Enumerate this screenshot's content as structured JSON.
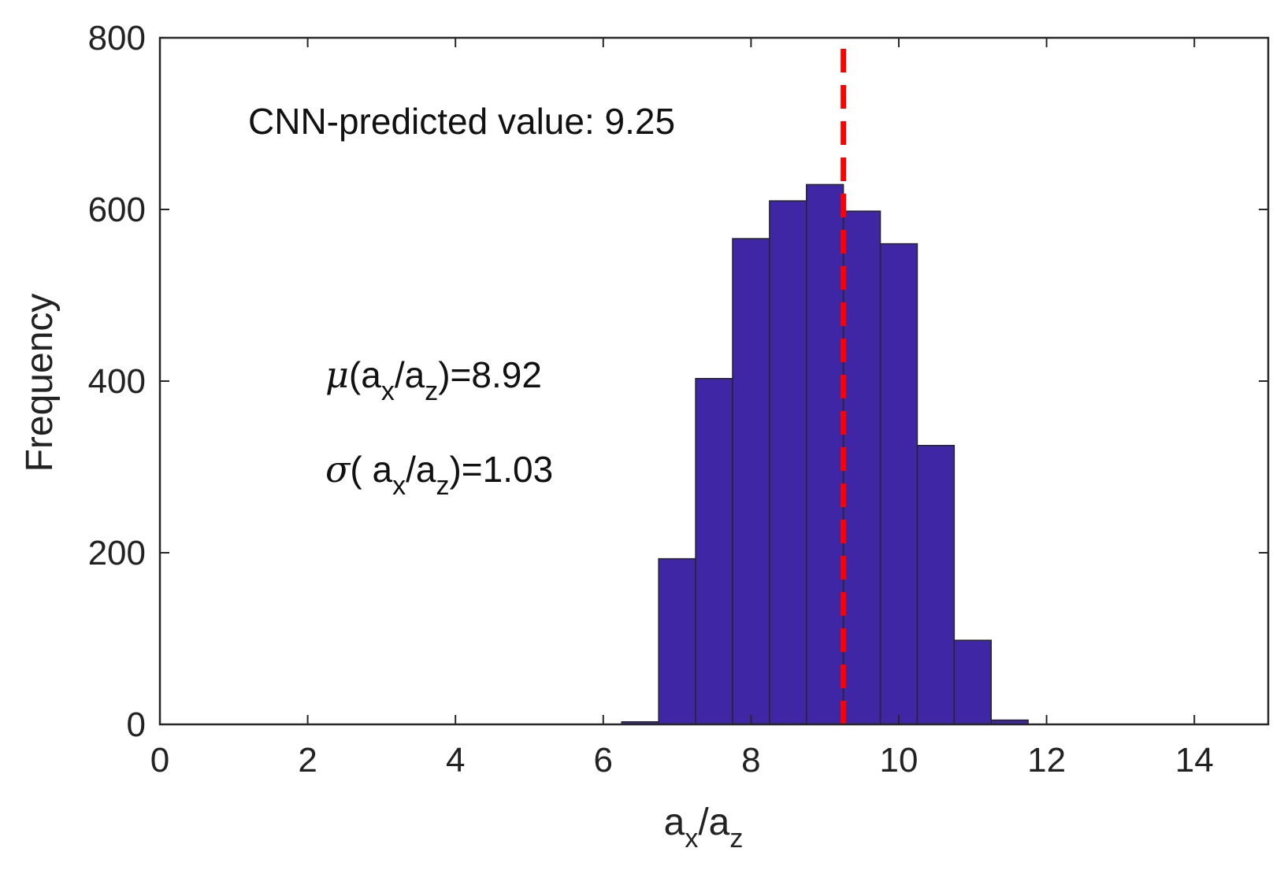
{
  "chart_data": {
    "type": "bar",
    "subtype": "histogram",
    "title": "",
    "xlabel": {
      "base": "a",
      "sub1": "x",
      "slash": "/",
      "base2": "a",
      "sub2": "z"
    },
    "ylabel": "Frequency",
    "xlim": [
      0,
      15
    ],
    "ylim": [
      0,
      800
    ],
    "xticks": [
      0,
      2,
      4,
      6,
      8,
      10,
      12,
      14
    ],
    "yticks": [
      0,
      200,
      400,
      600,
      800
    ],
    "bin_width": 0.5,
    "bins": [
      {
        "x0": 6.25,
        "x1": 6.75,
        "value": 3
      },
      {
        "x0": 6.75,
        "x1": 7.25,
        "value": 193
      },
      {
        "x0": 7.25,
        "x1": 7.75,
        "value": 403
      },
      {
        "x0": 7.75,
        "x1": 8.25,
        "value": 566
      },
      {
        "x0": 8.25,
        "x1": 8.75,
        "value": 610
      },
      {
        "x0": 8.75,
        "x1": 9.25,
        "value": 629
      },
      {
        "x0": 9.25,
        "x1": 9.75,
        "value": 598
      },
      {
        "x0": 9.75,
        "x1": 10.25,
        "value": 560
      },
      {
        "x0": 10.25,
        "x1": 10.75,
        "value": 325
      },
      {
        "x0": 10.75,
        "x1": 11.25,
        "value": 98
      },
      {
        "x0": 11.25,
        "x1": 11.75,
        "value": 5
      }
    ],
    "reference_line": {
      "x": 9.25,
      "style": "dashed",
      "color": "#ff0000"
    },
    "colors": {
      "bar_fill": "#3f26a5",
      "bar_edge": "#262626",
      "axis": "#262626"
    },
    "grid": false,
    "annotations": {
      "predicted": "CNN-predicted value: 9.25",
      "mu": {
        "symbol": "μ",
        "open": "(a",
        "sub1": "x",
        "mid": "/a",
        "sub2": "z",
        "close": ")=8.92"
      },
      "sigma": {
        "symbol": "σ",
        "open": "( a",
        "sub1": "x",
        "mid": "/a",
        "sub2": "z",
        "close": ")=1.03"
      }
    }
  }
}
